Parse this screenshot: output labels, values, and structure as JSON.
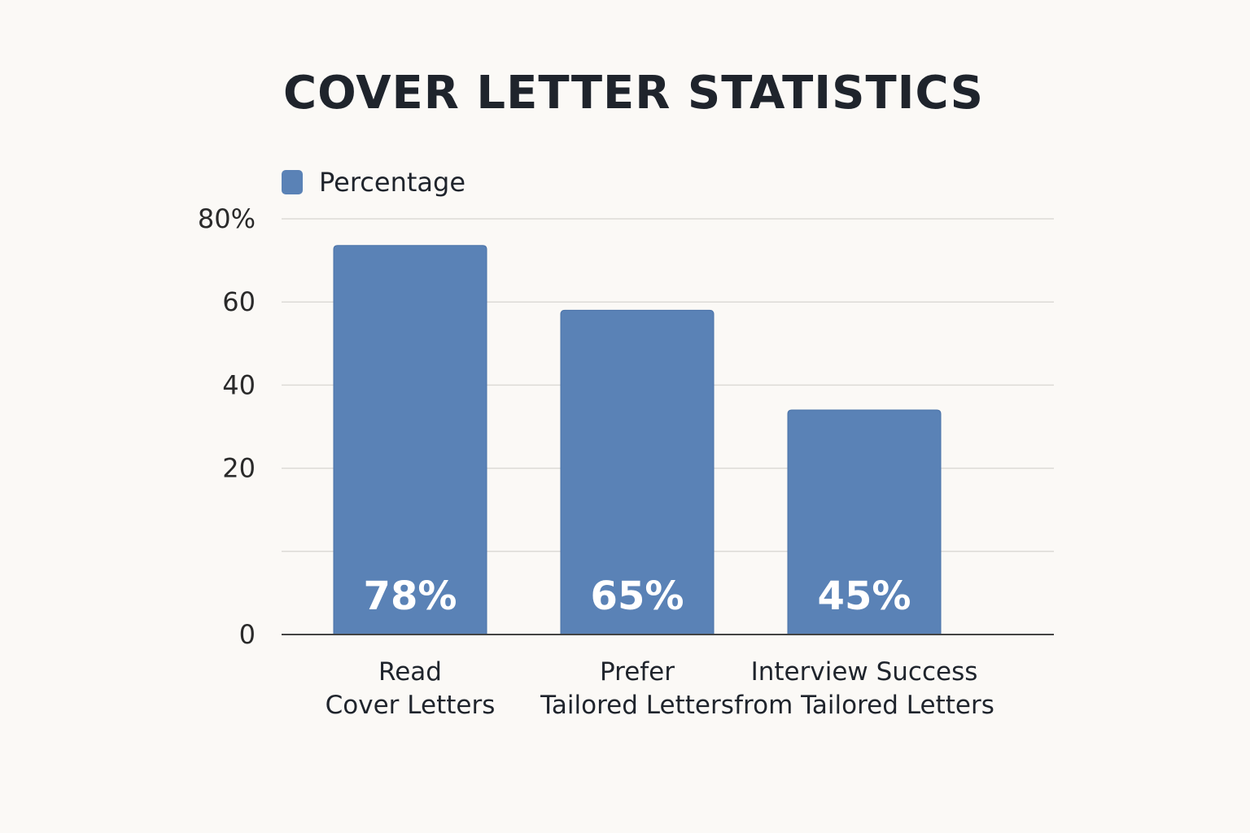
{
  "chart_data": {
    "type": "bar",
    "title": "COVER LETTER STATISTICS",
    "xlabel": "",
    "ylabel": "",
    "ylim": [
      0,
      80
    ],
    "yticks": [
      {
        "value": 80,
        "label": "80%"
      },
      {
        "value": 60,
        "label": "60"
      },
      {
        "value": 40,
        "label": "40"
      },
      {
        "value": 20,
        "label": "20"
      },
      {
        "value": 10,
        "label": ""
      },
      {
        "value": 0,
        "label": "0"
      }
    ],
    "grid": true,
    "legend_placement": "top-left",
    "categories": [
      [
        "Read",
        "Cover Letters"
      ],
      [
        "Prefer",
        "Tailored Letters"
      ],
      [
        "Interview Success",
        "from Tailored Letters"
      ]
    ],
    "series": [
      {
        "name": "Percentage",
        "values": [
          78,
          65,
          45
        ],
        "labels": [
          "78%",
          "65%",
          "45%"
        ],
        "color": "#5a82b6"
      }
    ]
  }
}
